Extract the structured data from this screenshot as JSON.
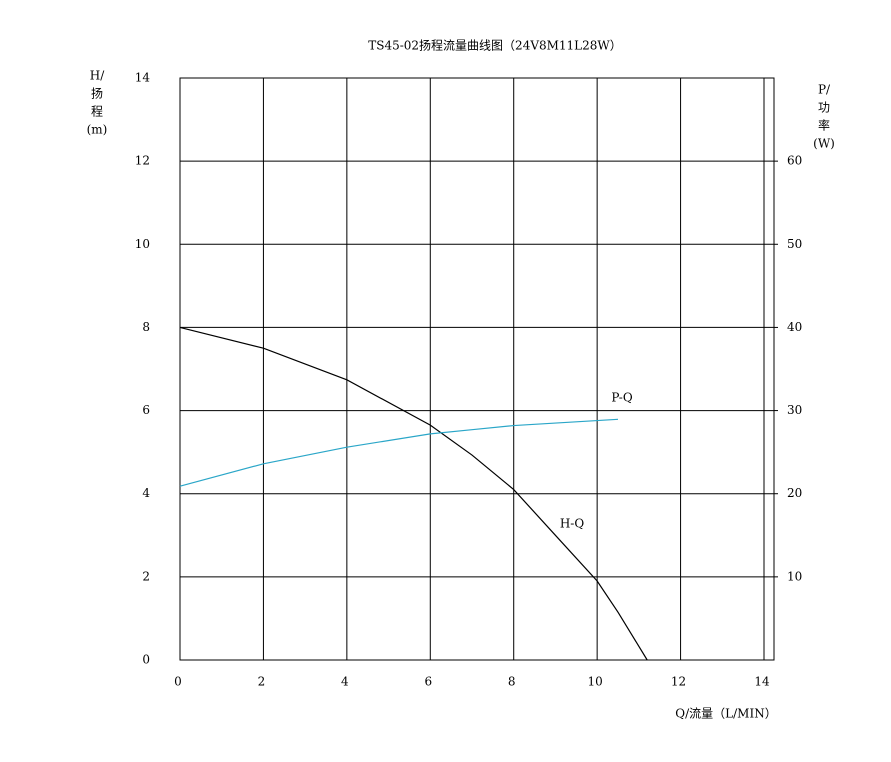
{
  "chart_data": {
    "type": "line",
    "title": "TS45-02扬程流量曲线图（24V8M11L28W）",
    "xlabel": "Q/流量（L/MIN）",
    "ylabel": [
      "H/",
      "扬",
      "程",
      "(m)"
    ],
    "y2label": [
      "P/",
      "功",
      "率",
      "(W)"
    ],
    "x": [
      0,
      2,
      4,
      6,
      7,
      8,
      9,
      10,
      10.5,
      11.2
    ],
    "xlim": [
      0,
      14
    ],
    "xticks": [
      0,
      2,
      4,
      6,
      8,
      10,
      12,
      14
    ],
    "ylim": [
      0,
      14
    ],
    "yticks": [
      0,
      2,
      4,
      6,
      8,
      10,
      12,
      14
    ],
    "y2lim": [
      0,
      70
    ],
    "y2ticks": [
      10,
      20,
      30,
      40,
      50,
      60
    ],
    "grid": true,
    "series": [
      {
        "name": "H-Q",
        "color": "#000000",
        "values": [
          8,
          7.5,
          6.74,
          5.65,
          4.93,
          4.1,
          3.0,
          1.9,
          1.15,
          0
        ]
      },
      {
        "name": "P-Q",
        "color": "#2aa6c8",
        "axis": "y2",
        "values": [
          20.9,
          23.6,
          25.6,
          27.2,
          27.7,
          28.2,
          28.5,
          28.8,
          28.95,
          null
        ]
      }
    ]
  }
}
